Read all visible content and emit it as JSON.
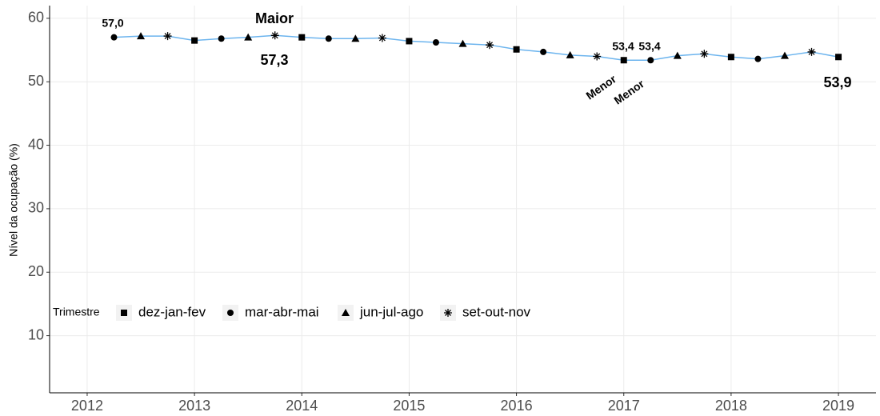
{
  "chart_data": {
    "type": "line",
    "y_label": "Nível da ocupação (%)",
    "legend_title": "Trimestre",
    "legend": [
      {
        "name": "dez-jan-fev",
        "marker": "square"
      },
      {
        "name": "mar-abr-mai",
        "marker": "circle"
      },
      {
        "name": "jun-jul-ago",
        "marker": "triangle"
      },
      {
        "name": "set-out-nov",
        "marker": "asterisk"
      }
    ],
    "line_color": "#6cb4ee",
    "marker_color": "#000000",
    "x": [
      2012.25,
      2012.5,
      2012.75,
      2013.0,
      2013.25,
      2013.5,
      2013.75,
      2014.0,
      2014.25,
      2014.5,
      2014.75,
      2015.0,
      2015.25,
      2015.5,
      2015.75,
      2016.0,
      2016.25,
      2016.5,
      2016.75,
      2017.0,
      2017.25,
      2017.5,
      2017.75,
      2018.0,
      2018.25,
      2018.5,
      2018.75,
      2019.0
    ],
    "values": [
      57.0,
      57.2,
      57.2,
      56.5,
      56.8,
      57.0,
      57.3,
      57.0,
      56.8,
      56.8,
      56.9,
      56.4,
      56.2,
      56.0,
      55.8,
      55.1,
      54.7,
      54.2,
      54.0,
      53.4,
      53.4,
      54.1,
      54.4,
      53.9,
      53.6,
      54.1,
      54.7,
      53.9
    ],
    "trimestre": [
      "mar-abr-mai",
      "jun-jul-ago",
      "set-out-nov",
      "dez-jan-fev",
      "mar-abr-mai",
      "jun-jul-ago",
      "set-out-nov",
      "dez-jan-fev",
      "mar-abr-mai",
      "jun-jul-ago",
      "set-out-nov",
      "dez-jan-fev",
      "mar-abr-mai",
      "jun-jul-ago",
      "set-out-nov",
      "dez-jan-fev",
      "mar-abr-mai",
      "jun-jul-ago",
      "set-out-nov",
      "dez-jan-fev",
      "mar-abr-mai",
      "jun-jul-ago",
      "set-out-nov",
      "dez-jan-fev",
      "mar-abr-mai",
      "jun-jul-ago",
      "set-out-nov",
      "dez-jan-fev"
    ],
    "annotations": [
      "57,0",
      "Maior",
      "57,3",
      "53,4",
      "53,4",
      "Menor",
      "Menor",
      "53,9"
    ],
    "xlim": [
      2011.65,
      2019.35
    ],
    "xticks": [
      2012,
      2013,
      2014,
      2015,
      2016,
      2017,
      2018,
      2019
    ],
    "ylim": [
      1,
      62
    ],
    "yticks": [
      10,
      20,
      30,
      40,
      50,
      60
    ],
    "grid": true
  }
}
